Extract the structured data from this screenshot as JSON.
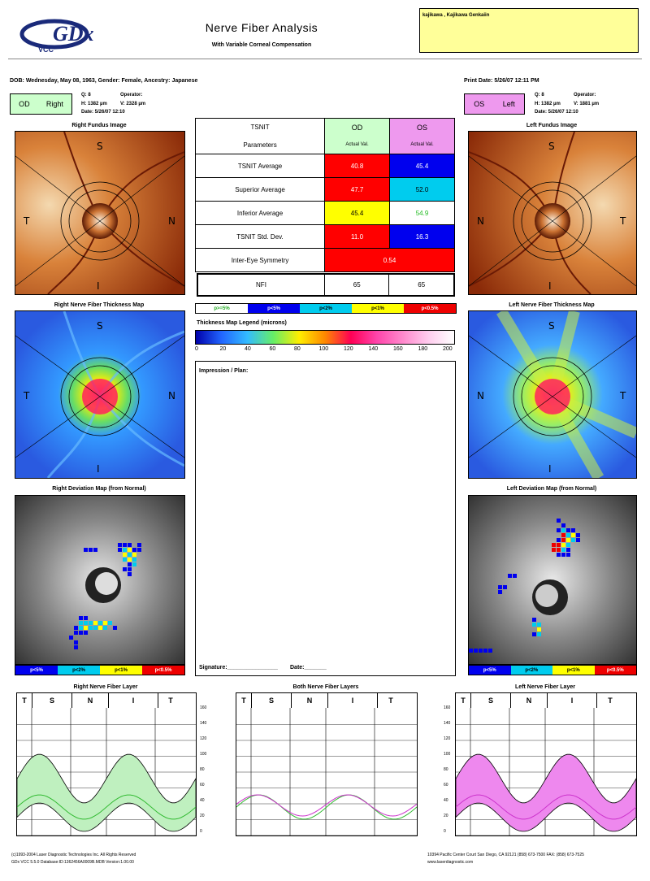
{
  "header": {
    "logo_text": "GDx",
    "logo_sub": "VCC",
    "title": "Nerve Fiber Analysis",
    "subtitle": "With Variable Corneal Compensation",
    "patient_name": "kajikawa , Kajikawa Genkaiin"
  },
  "info": {
    "dob_line": "DOB: Wednesday, May 08, 1963, Gender: Female, Ancestry: Japanese",
    "print_date": "Print Date: 5/26/07 12:11 PM"
  },
  "od": {
    "code": "OD",
    "side": "Right",
    "color": "#ccffcc",
    "q": "Q: 8",
    "operator": "Operator:",
    "h": "H: 1382 µm",
    "v": "V: 2328 µm",
    "date": "Date: 5/26/07 12:10"
  },
  "os": {
    "code": "OS",
    "side": "Left",
    "color": "#ee99ee",
    "q": "Q: 8",
    "operator": "Operator:",
    "h": "H: 1382 µm",
    "v": "V: 1881 µm",
    "date": "Date: 5/26/07 12:10"
  },
  "sections": {
    "right_fundus": "Right Fundus Image",
    "left_fundus": "Left Fundus Image",
    "right_thickness": "Right Nerve Fiber Thickness Map",
    "left_thickness": "Left Nerve Fiber Thickness Map",
    "right_deviation": "Right Deviation Map (from Normal)",
    "left_deviation": "Left Deviation Map (from Normal)",
    "right_layer": "Right Nerve Fiber Layer",
    "both_layer": "Both Nerve Fiber Layers",
    "left_layer": "Left Nerve Fiber Layer"
  },
  "quadrants": {
    "s": "S",
    "i": "I",
    "t": "T",
    "n": "N"
  },
  "tsnit_table": {
    "param_title_1": "TSNIT",
    "param_title_2": "Parameters",
    "od_label": "OD",
    "os_label": "OS",
    "actual_val": "Actual Val.",
    "rows": [
      {
        "label": "TSNIT Average",
        "od": "40.8",
        "od_color": "#ff0000",
        "os": "45.4",
        "os_color": "#0000ee"
      },
      {
        "label": "Superior Average",
        "od": "47.7",
        "od_color": "#ff0000",
        "os": "52.0",
        "os_color": "#00ccee"
      },
      {
        "label": "Inferior Average",
        "od": "45.4",
        "od_color": "#ffff00",
        "os": "54.9",
        "os_color": "#ffffff"
      },
      {
        "label": "TSNIT Std. Dev.",
        "od": "11.0",
        "od_color": "#ff0000",
        "os": "16.3",
        "os_color": "#0000ee"
      }
    ],
    "symmetry_label": "Inter-Eye Symmetry",
    "symmetry_value": "0.54",
    "nfi_label": "NFI",
    "nfi_od": "65",
    "nfi_os": "65"
  },
  "significance_legend": [
    "p>=5%",
    "p<5%",
    "p<2%",
    "p<1%",
    "p<0.5%"
  ],
  "deviation_legend": [
    "p<5%",
    "p<2%",
    "p<1%",
    "p<0.5%"
  ],
  "thickness_legend": {
    "title": "Thickness Map Legend (microns)",
    "ticks": [
      "0",
      "20",
      "40",
      "60",
      "80",
      "100",
      "120",
      "140",
      "160",
      "180",
      "200"
    ]
  },
  "impression": {
    "label": "Impression / Plan:",
    "signature": "Signature:________________",
    "date": "Date:_______"
  },
  "graph": {
    "tsnit_labels": [
      "T",
      "S",
      "N",
      "I",
      "T"
    ],
    "y_ticks": [
      "0",
      "20",
      "40",
      "60",
      "80",
      "100",
      "120",
      "140",
      "160"
    ]
  },
  "footer": {
    "left_line1": "(c)1993-2004 Laser Diagnostic Technologies Inc. All Rights Reserved",
    "left_line2": "GDx VCC 5.5.0 Database:ID:1362456A0009B.MDB Version:1.00.00",
    "right_line1": "10394 Pacific Center Court   San Diego, CA 92121   (858) 673-7500   FAX: (858) 673-7525",
    "right_line2": "www.laserdiagnostic.com"
  }
}
